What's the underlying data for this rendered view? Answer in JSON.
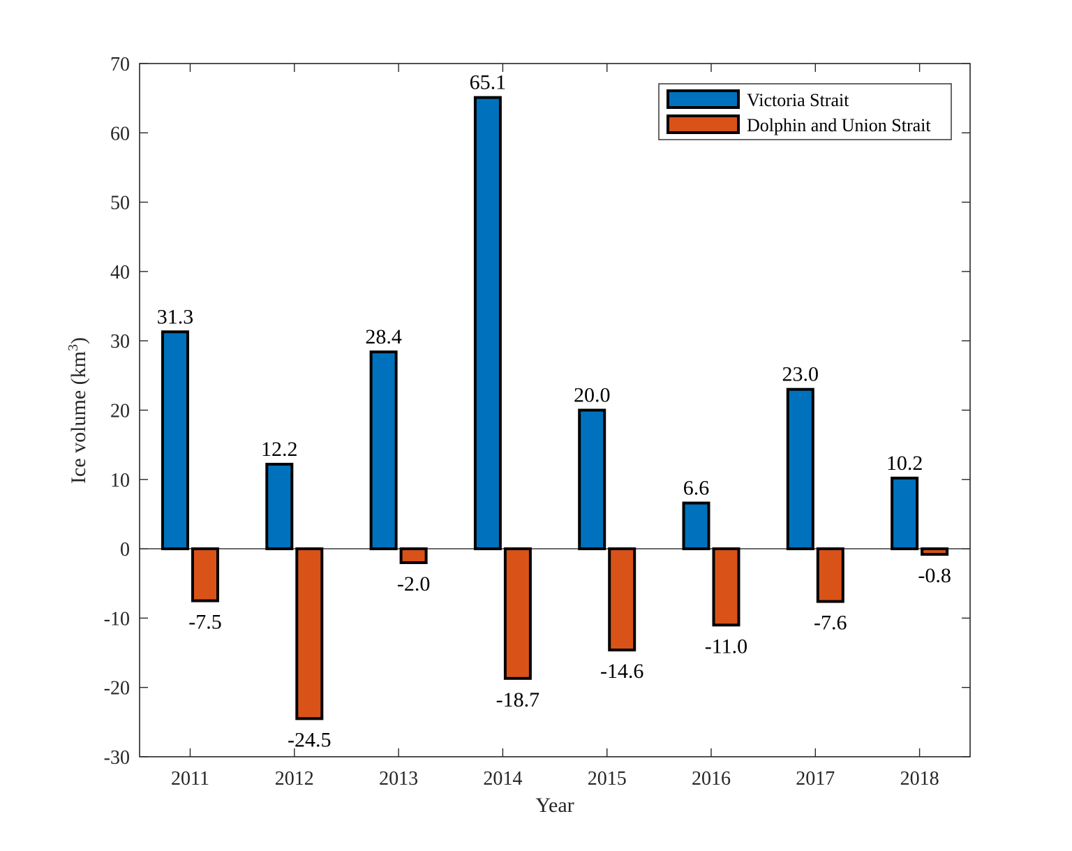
{
  "chart_data": {
    "type": "bar",
    "title": "",
    "xlabel": "Year",
    "ylabel": "Ice volume (km",
    "ylabel_sup": "3",
    "ylabel_close": ")",
    "categories": [
      "2011",
      "2012",
      "2013",
      "2014",
      "2015",
      "2016",
      "2017",
      "2018"
    ],
    "ylim": [
      -30,
      70
    ],
    "yticks": [
      -30,
      -20,
      -10,
      0,
      10,
      20,
      30,
      40,
      50,
      60,
      70
    ],
    "grid": false,
    "legend_position": "top-right",
    "series": [
      {
        "name": "Victoria Strait",
        "color": "#0072BD",
        "values": [
          31.3,
          12.2,
          28.4,
          65.1,
          20.0,
          6.6,
          23.0,
          10.2
        ],
        "labels": [
          "31.3",
          "12.2",
          "28.4",
          "65.1",
          "20.0",
          "6.6",
          "23.0",
          "10.2"
        ]
      },
      {
        "name": "Dolphin and Union Strait",
        "color": "#D95319",
        "values": [
          -7.5,
          -24.5,
          -2.0,
          -18.7,
          -14.6,
          -11.0,
          -7.6,
          -0.8
        ],
        "labels": [
          "-7.5",
          "-24.5",
          "-2.0",
          "-18.7",
          "-14.6",
          "-11.0",
          "-7.6",
          "-0.8"
        ]
      }
    ]
  }
}
